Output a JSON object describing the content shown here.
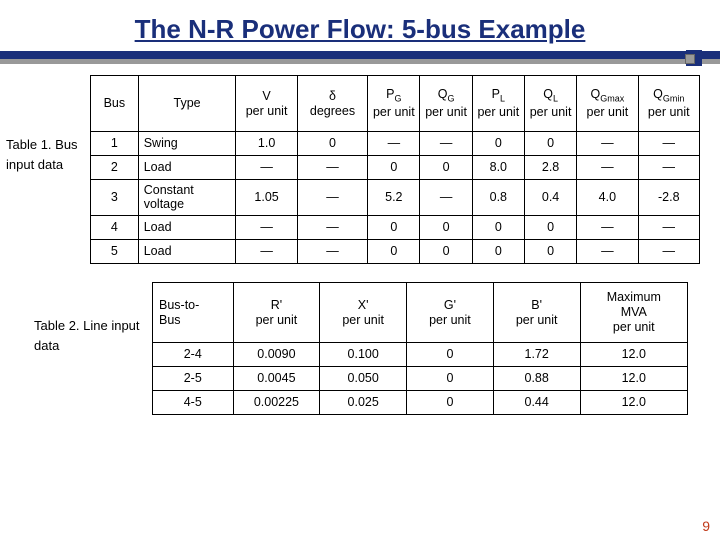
{
  "title": "The N-R Power Flow: 5-bus Example",
  "page_number": "9",
  "colors": {
    "title": "#1a2f7a",
    "bar": "#1a2f7a",
    "shadow": "#999999",
    "pagenum": "#c03a1a",
    "border": "#000000",
    "bg": "#ffffff"
  },
  "caption1": "Table 1.\nBus input data",
  "caption2": "Table 2.\nLine input data",
  "table1": {
    "headers": [
      "Bus",
      "Type",
      "V\nper unit",
      "δ\ndegrees",
      "P_G\nper unit",
      "Q_G\nper unit",
      "P_L\nper unit",
      "Q_L\nper unit",
      "Q_Gmax\nper unit",
      "Q_Gmin\nper unit"
    ],
    "rows": [
      [
        "1",
        "Swing",
        "1.0",
        "0",
        "—",
        "—",
        "0",
        "0",
        "—",
        "—"
      ],
      [
        "2",
        "Load",
        "—",
        "—",
        "0",
        "0",
        "8.0",
        "2.8",
        "—",
        "—"
      ],
      [
        "3",
        "Constant voltage",
        "1.05",
        "—",
        "5.2",
        "—",
        "0.8",
        "0.4",
        "4.0",
        "-2.8"
      ],
      [
        "4",
        "Load",
        "—",
        "—",
        "0",
        "0",
        "0",
        "0",
        "—",
        "—"
      ],
      [
        "5",
        "Load",
        "—",
        "—",
        "0",
        "0",
        "0",
        "0",
        "—",
        "—"
      ]
    ]
  },
  "table2": {
    "headers": [
      "Bus-to-Bus",
      "R'\nper unit",
      "X'\nper unit",
      "G'\nper unit",
      "B'\nper unit",
      "Maximum\nMVA\nper unit"
    ],
    "rows": [
      [
        "2-4",
        "0.0090",
        "0.100",
        "0",
        "1.72",
        "12.0"
      ],
      [
        "2-5",
        "0.0045",
        "0.050",
        "0",
        "0.88",
        "12.0"
      ],
      [
        "4-5",
        "0.00225",
        "0.025",
        "0",
        "0.44",
        "12.0"
      ]
    ]
  }
}
